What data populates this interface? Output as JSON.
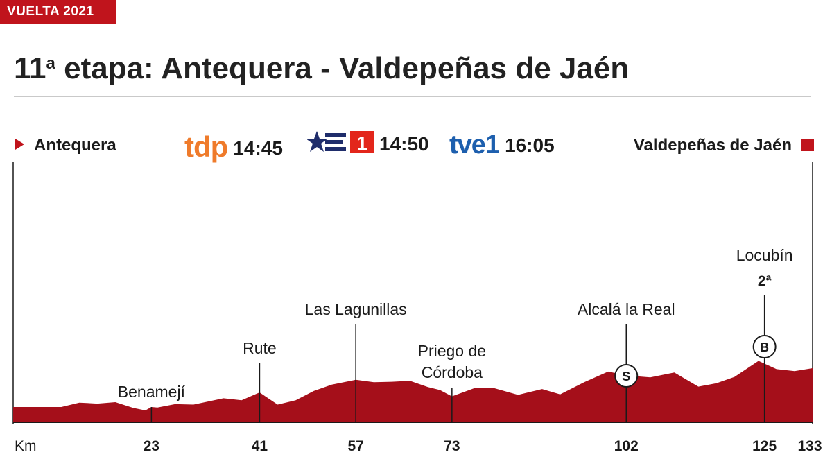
{
  "header": {
    "tag": "VUELTA 2021",
    "title_num": "11",
    "title_sup": "a",
    "title_rest": " etapa: Antequera - Valdepeñas de Jaén"
  },
  "route": {
    "start": "Antequera",
    "finish": "Valdepeñas de Jaén"
  },
  "broadcasts": [
    {
      "channel": "tdp",
      "time": "14:45"
    },
    {
      "channel": "1",
      "time": "14:50"
    },
    {
      "channel": "tve1",
      "time": "16:05"
    }
  ],
  "colors": {
    "accent": "#c0141c",
    "profile": "#a50f1a",
    "tdp": "#ef7b2b",
    "tve": "#1d5fae",
    "la1_star": "#1f2d6b"
  },
  "chart_data": {
    "type": "area",
    "axis_label": "Km",
    "total_km": 133,
    "profile": [
      [
        0,
        3.0
      ],
      [
        8,
        3.0
      ],
      [
        11,
        3.9
      ],
      [
        14,
        3.7
      ],
      [
        17,
        4.0
      ],
      [
        20,
        2.8
      ],
      [
        22,
        2.3
      ],
      [
        23,
        3.0
      ],
      [
        24,
        2.9
      ],
      [
        27,
        3.6
      ],
      [
        30,
        3.5
      ],
      [
        35,
        4.8
      ],
      [
        38,
        4.4
      ],
      [
        41,
        6.0
      ],
      [
        44,
        3.5
      ],
      [
        47,
        4.4
      ],
      [
        50,
        6.3
      ],
      [
        53,
        7.6
      ],
      [
        57,
        8.6
      ],
      [
        60,
        8.1
      ],
      [
        63,
        8.2
      ],
      [
        66,
        8.4
      ],
      [
        69,
        7.1
      ],
      [
        71,
        6.5
      ],
      [
        73,
        5.2
      ],
      [
        77,
        7.0
      ],
      [
        80,
        6.9
      ],
      [
        84,
        5.5
      ],
      [
        88,
        6.7
      ],
      [
        91,
        5.6
      ],
      [
        95,
        8.1
      ],
      [
        99,
        10.3
      ],
      [
        102,
        9.5
      ],
      [
        106,
        9.1
      ],
      [
        110,
        10.1
      ],
      [
        114,
        7.2
      ],
      [
        117,
        7.9
      ],
      [
        120,
        9.2
      ],
      [
        124,
        12.5
      ],
      [
        127,
        10.8
      ],
      [
        130,
        10.4
      ],
      [
        133,
        11.0
      ]
    ],
    "points": [
      {
        "km": 23,
        "name": "Benamejí",
        "km_label": "23",
        "stem_to": 3.0
      },
      {
        "km": 41,
        "name": "Rute",
        "km_label": "41",
        "stem_to": 12.0
      },
      {
        "km": 57,
        "name": "Las Lagunillas",
        "km_label": "57",
        "stem_to": 20.0
      },
      {
        "km": 73,
        "name": "Priego de|Córdoba",
        "km_label": "73",
        "stem_to": 7.0
      },
      {
        "km": 102,
        "name": "Alcalá la Real",
        "km_label": "102",
        "badge": "S",
        "stem_to": 20.0
      },
      {
        "km": 125,
        "name": "Locubín",
        "cat": "2ª",
        "km_label": "125",
        "badge": "B",
        "stem_to": 26.0
      }
    ],
    "finish_label": "133"
  }
}
